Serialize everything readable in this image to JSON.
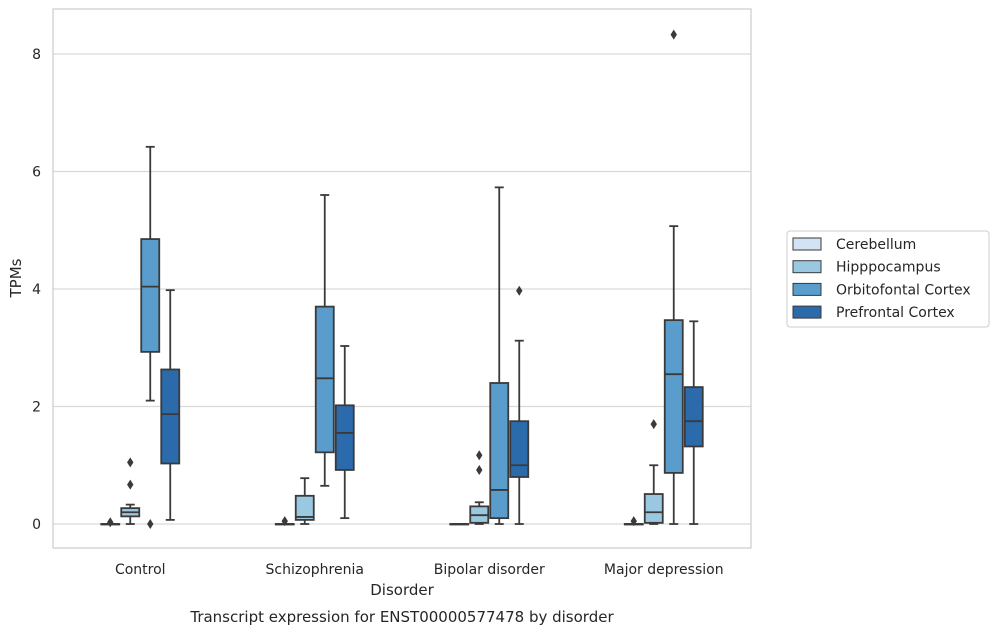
{
  "chart_data": {
    "type": "box",
    "title": "",
    "caption": "Transcript expression for ENST00000577478 by disorder",
    "xlabel": "Disorder",
    "ylabel": "TPMs",
    "ylim": [
      -0.4,
      8.75
    ],
    "yticks": [
      0,
      2,
      4,
      6,
      8
    ],
    "grid": "horizontal",
    "legend_position": "right",
    "categories": [
      "Control",
      "Schizophrenia",
      "Bipolar disorder",
      "Major depression"
    ],
    "series": [
      {
        "name": "Cerebellum",
        "color": "#d2e3f3",
        "boxes": [
          {
            "whislo": 0,
            "q1": 0,
            "med": 0,
            "q3": 0,
            "whishi": 0,
            "fliers": [
              0.03
            ]
          },
          {
            "whislo": 0,
            "q1": 0,
            "med": 0,
            "q3": 0,
            "whishi": 0,
            "fliers": [
              0.05
            ]
          },
          {
            "whislo": 0,
            "q1": 0,
            "med": 0,
            "q3": 0,
            "whishi": 0,
            "fliers": []
          },
          {
            "whislo": 0,
            "q1": 0,
            "med": 0,
            "q3": 0,
            "whishi": 0,
            "fliers": [
              0.05
            ]
          }
        ]
      },
      {
        "name": "Hipppocampus",
        "color": "#9ac8e0",
        "boxes": [
          {
            "whislo": 0,
            "q1": 0.13,
            "med": 0.2,
            "q3": 0.27,
            "whishi": 0.33,
            "fliers": [
              0.67,
              1.05
            ]
          },
          {
            "whislo": 0,
            "q1": 0.07,
            "med": 0.12,
            "q3": 0.48,
            "whishi": 0.78,
            "fliers": []
          },
          {
            "whislo": 0,
            "q1": 0.02,
            "med": 0.15,
            "q3": 0.3,
            "whishi": 0.37,
            "fliers": [
              0.92,
              1.17
            ]
          },
          {
            "whislo": 0,
            "q1": 0.02,
            "med": 0.2,
            "q3": 0.51,
            "whishi": 1.0,
            "fliers": [
              1.7
            ]
          }
        ]
      },
      {
        "name": "Orbitofontal Cortex",
        "color": "#5a9dcc",
        "boxes": [
          {
            "whislo": 2.1,
            "q1": 2.93,
            "med": 4.04,
            "q3": 4.85,
            "whishi": 6.42,
            "fliers": [
              0
            ]
          },
          {
            "whislo": 0.65,
            "q1": 1.22,
            "med": 2.48,
            "q3": 3.7,
            "whishi": 5.6,
            "fliers": []
          },
          {
            "whislo": 0,
            "q1": 0.1,
            "med": 0.58,
            "q3": 2.4,
            "whishi": 5.73,
            "fliers": []
          },
          {
            "whislo": 0,
            "q1": 0.87,
            "med": 2.55,
            "q3": 3.47,
            "whishi": 5.07,
            "fliers": [
              8.33
            ]
          }
        ]
      },
      {
        "name": "Prefrontal Cortex",
        "color": "#2b6aab",
        "boxes": [
          {
            "whislo": 0.07,
            "q1": 1.03,
            "med": 1.87,
            "q3": 2.63,
            "whishi": 3.98,
            "fliers": []
          },
          {
            "whislo": 0.1,
            "q1": 0.92,
            "med": 1.55,
            "q3": 2.02,
            "whishi": 3.03,
            "fliers": []
          },
          {
            "whislo": 0,
            "q1": 0.8,
            "med": 1.0,
            "q3": 1.75,
            "whishi": 3.12,
            "fliers": [
              3.97
            ]
          },
          {
            "whislo": 0,
            "q1": 1.32,
            "med": 1.75,
            "q3": 2.33,
            "whishi": 3.45,
            "fliers": []
          }
        ]
      }
    ]
  }
}
